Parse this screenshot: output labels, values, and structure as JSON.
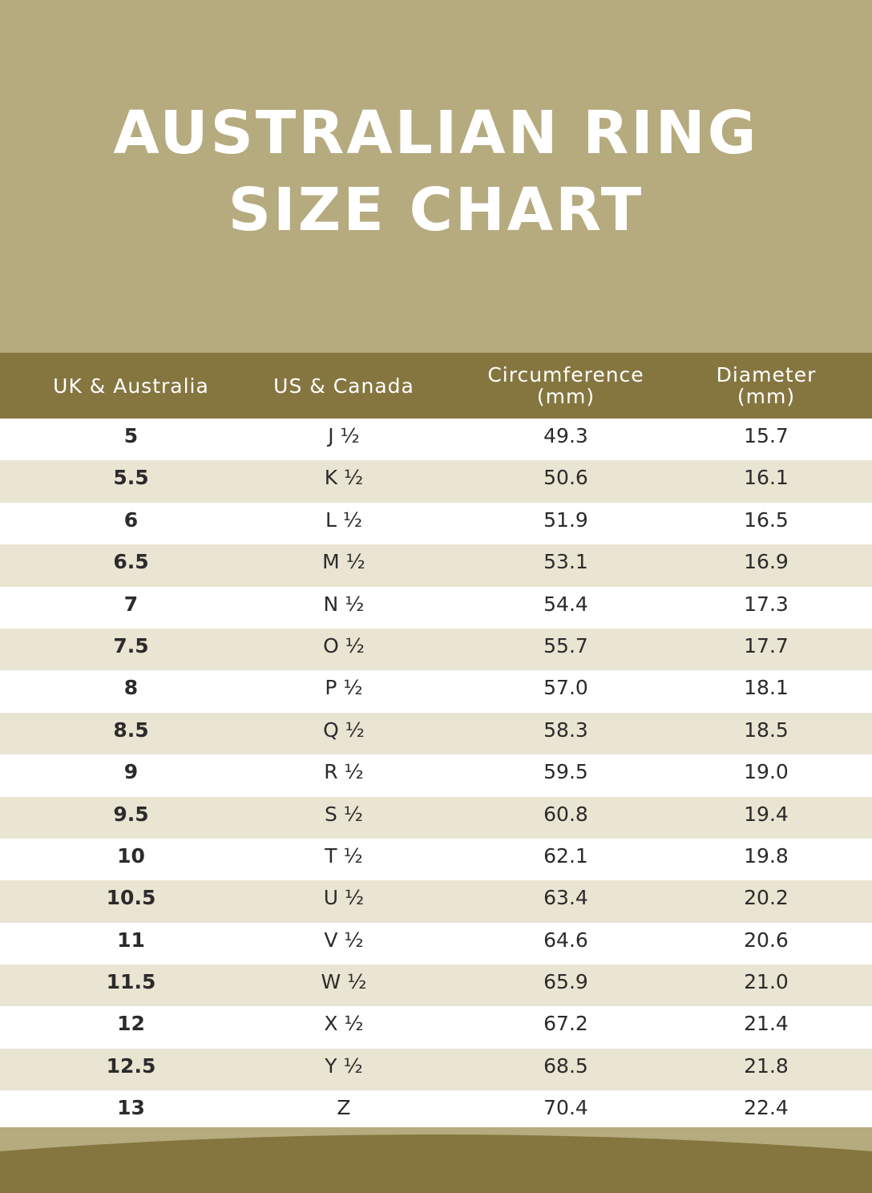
{
  "title": {
    "line1": "AUSTRALIAN RING",
    "line2": "SIZE CHART"
  },
  "columns": [
    {
      "line1": "UK & Australia",
      "line2": ""
    },
    {
      "line1": "US & Canada",
      "line2": ""
    },
    {
      "line1": "Circumference",
      "line2": "(mm)"
    },
    {
      "line1": "Diameter",
      "line2": "(mm)"
    }
  ],
  "rows": [
    {
      "uk": "5",
      "us": "J ½",
      "circ": "49.3",
      "dia": "15.7"
    },
    {
      "uk": "5.5",
      "us": "K ½",
      "circ": "50.6",
      "dia": "16.1"
    },
    {
      "uk": "6",
      "us": "L ½",
      "circ": "51.9",
      "dia": "16.5"
    },
    {
      "uk": "6.5",
      "us": "M ½",
      "circ": "53.1",
      "dia": "16.9"
    },
    {
      "uk": "7",
      "us": "N ½",
      "circ": "54.4",
      "dia": "17.3"
    },
    {
      "uk": "7.5",
      "us": "O ½",
      "circ": "55.7",
      "dia": "17.7"
    },
    {
      "uk": "8",
      "us": "P ½",
      "circ": "57.0",
      "dia": "18.1"
    },
    {
      "uk": "8.5",
      "us": "Q ½",
      "circ": "58.3",
      "dia": "18.5"
    },
    {
      "uk": "9",
      "us": "R ½",
      "circ": "59.5",
      "dia": "19.0"
    },
    {
      "uk": "9.5",
      "us": "S ½",
      "circ": "60.8",
      "dia": "19.4"
    },
    {
      "uk": "10",
      "us": "T ½",
      "circ": "62.1",
      "dia": "19.8"
    },
    {
      "uk": "10.5",
      "us": "U ½",
      "circ": "63.4",
      "dia": "20.2"
    },
    {
      "uk": "11",
      "us": "V ½",
      "circ": "64.6",
      "dia": "20.6"
    },
    {
      "uk": "11.5",
      "us": "W ½",
      "circ": "65.9",
      "dia": "21.0"
    },
    {
      "uk": "12",
      "us": "X ½",
      "circ": "67.2",
      "dia": "21.4"
    },
    {
      "uk": "12.5",
      "us": "Y ½",
      "circ": "68.5",
      "dia": "21.8"
    },
    {
      "uk": "13",
      "us": "Z",
      "circ": "70.4",
      "dia": "22.4"
    }
  ],
  "colors": {
    "header_bg": "#b5ab7e",
    "table_head_bg": "#857640",
    "row_alt_bg": "#e9e5d2",
    "row_bg": "#ffffff",
    "text": "#2b2b2b"
  }
}
